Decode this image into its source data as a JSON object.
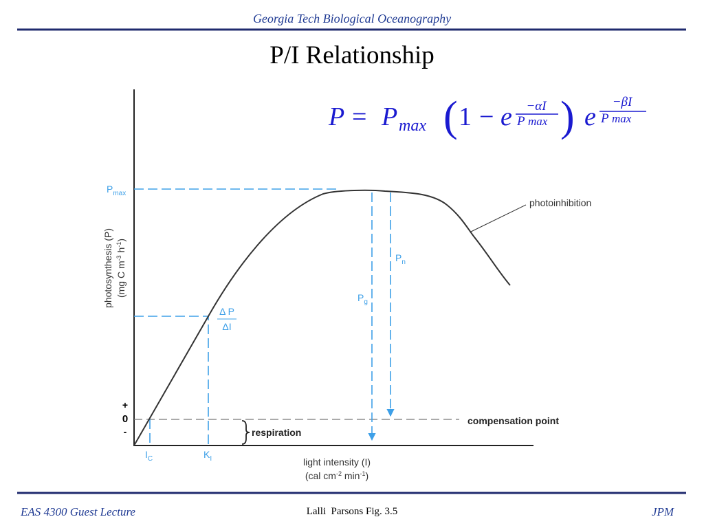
{
  "header": {
    "subtitle": "Georgia Tech Biological Oceanography",
    "title": "P/I Relationship"
  },
  "equation": {
    "lhs": "P",
    "equals": "=",
    "pmax": "P",
    "pmax_sub": "max",
    "open": "(",
    "one": "1",
    "minus": "−",
    "e1": "e",
    "exp1_num": "−αI",
    "exp1_den": "P",
    "exp1_den_sub": "max",
    "close": ")",
    "e2": "e",
    "exp2_num": "−βI",
    "exp2_den": "P",
    "exp2_den_sub": "max"
  },
  "figure": {
    "pmax_label": {
      "main": "P",
      "sub": "max"
    },
    "photoinhibition": "photoinhibition",
    "y_axis_label": {
      "line1": "photosynthesis (P)",
      "line2_a": "(mg C m",
      "line2_sup1": "-3",
      "line2_b": " h",
      "line2_sup2": "-1",
      "line2_c": ")"
    },
    "pn_label": {
      "main": "P",
      "sub": "n"
    },
    "pg_label": {
      "main": "P",
      "sub": "g"
    },
    "slope_label": {
      "numerator": "Δ P",
      "denominator": "ΔI"
    },
    "sign_labels": {
      "plus": "+",
      "zero": "0",
      "minus": "-"
    },
    "compensation_point": "compensation point",
    "respiration": "respiration",
    "ic_label": {
      "main": "I",
      "sub": "C"
    },
    "ki_label": {
      "main": "K",
      "sub": "I"
    },
    "x_axis_label": {
      "line1": "light intensity (I)",
      "line2_a": "(cal cm",
      "line2_sup1": "-2",
      "line2_b": " min",
      "line2_sup2": "-1",
      "line2_c": ")"
    }
  },
  "footer": {
    "left": "EAS 4300 Guest Lecture",
    "center": "Lalli  Parsons Fig. 3.5",
    "right": "JPM"
  }
}
